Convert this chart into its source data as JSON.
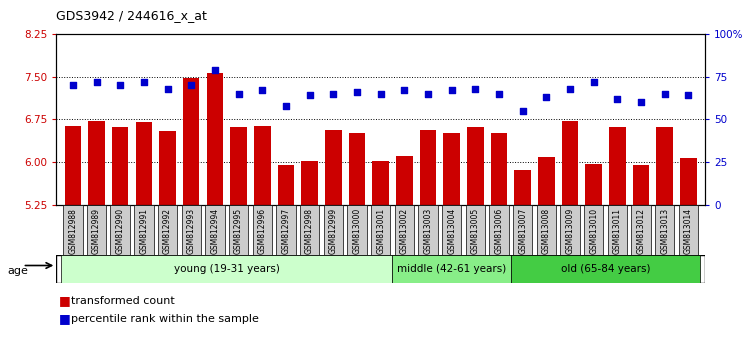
{
  "title": "GDS3942 / 244616_x_at",
  "samples": [
    "GSM812988",
    "GSM812989",
    "GSM812990",
    "GSM812991",
    "GSM812992",
    "GSM812993",
    "GSM812994",
    "GSM812995",
    "GSM812996",
    "GSM812997",
    "GSM812998",
    "GSM812999",
    "GSM813000",
    "GSM813001",
    "GSM813002",
    "GSM813003",
    "GSM813004",
    "GSM813005",
    "GSM813006",
    "GSM813007",
    "GSM813008",
    "GSM813009",
    "GSM813010",
    "GSM813011",
    "GSM813012",
    "GSM813013",
    "GSM813014"
  ],
  "transformed_count": [
    6.63,
    6.72,
    6.62,
    6.71,
    6.55,
    7.47,
    7.56,
    6.62,
    6.64,
    5.96,
    6.03,
    6.56,
    6.52,
    6.03,
    6.12,
    6.56,
    6.52,
    6.61,
    6.52,
    5.87,
    6.1,
    6.72,
    5.98,
    6.62,
    5.95,
    6.61,
    6.08
  ],
  "percentile_rank": [
    70,
    72,
    70,
    72,
    68,
    70,
    79,
    65,
    67,
    58,
    64,
    65,
    66,
    65,
    67,
    65,
    67,
    68,
    65,
    55,
    63,
    68,
    72,
    62,
    60,
    65,
    64
  ],
  "bar_color": "#cc0000",
  "dot_color": "#0000cc",
  "ylim_left": [
    5.25,
    8.25
  ],
  "ylim_right": [
    0,
    100
  ],
  "yticks_left": [
    5.25,
    6.0,
    6.75,
    7.5,
    8.25
  ],
  "yticks_right": [
    0,
    25,
    50,
    75,
    100
  ],
  "ytick_labels_right": [
    "0",
    "25",
    "50",
    "75",
    "100%"
  ],
  "grid_lines": [
    6.0,
    6.75,
    7.5
  ],
  "groups": [
    {
      "label": "young (19-31 years)",
      "start": 0,
      "end": 14,
      "color": "#ccffcc"
    },
    {
      "label": "middle (42-61 years)",
      "start": 14,
      "end": 19,
      "color": "#88ee88"
    },
    {
      "label": "old (65-84 years)",
      "start": 19,
      "end": 27,
      "color": "#44cc44"
    }
  ],
  "age_label": "age",
  "legend_bar_label": "transformed count",
  "legend_dot_label": "percentile rank within the sample",
  "plot_bg_color": "#ffffff",
  "xtick_bg_color": "#cccccc"
}
